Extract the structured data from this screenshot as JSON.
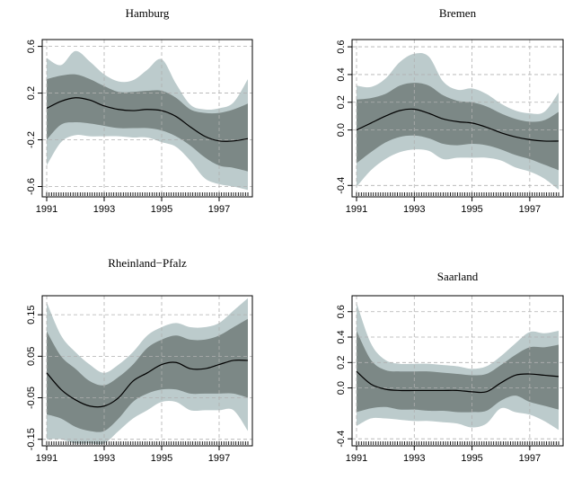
{
  "colors": {
    "outer_band": "#bccbcc",
    "inner_band": "#7c8886",
    "estimate": "#000000",
    "grid": "#b0b0b0"
  },
  "chart_data": [
    {
      "type": "area",
      "title": "Hamburg",
      "xlim": [
        1991,
        1998
      ],
      "ylim": [
        -0.65,
        0.62
      ],
      "yticks": [
        -0.6,
        -0.2,
        0.2,
        0.6
      ],
      "ytick_labels": [
        "-0.6",
        "-0.2",
        "0.2",
        "0.6"
      ],
      "xticks": [
        1991,
        1993,
        1995,
        1997
      ],
      "xtick_labels": [
        "1991",
        "1993",
        "1995",
        "1997"
      ],
      "grid": true,
      "x": [
        1991,
        1991.5,
        1992,
        1992.5,
        1993,
        1993.5,
        1994,
        1994.5,
        1995,
        1995.5,
        1996,
        1996.5,
        1997,
        1997.5,
        1998
      ],
      "series": [
        {
          "role": "outer_upper",
          "values": [
            0.5,
            0.44,
            0.56,
            0.47,
            0.36,
            0.3,
            0.31,
            0.4,
            0.49,
            0.28,
            0.1,
            0.06,
            0.07,
            0.12,
            0.32
          ]
        },
        {
          "role": "inner_upper",
          "values": [
            0.32,
            0.35,
            0.36,
            0.32,
            0.26,
            0.21,
            0.21,
            0.22,
            0.22,
            0.16,
            0.06,
            0.03,
            0.03,
            0.06,
            0.11
          ]
        },
        {
          "role": "estimate",
          "values": [
            0.07,
            0.13,
            0.16,
            0.14,
            0.09,
            0.06,
            0.05,
            0.06,
            0.05,
            0.0,
            -0.09,
            -0.17,
            -0.21,
            -0.21,
            -0.19
          ]
        },
        {
          "role": "inner_lower",
          "values": [
            -0.2,
            -0.07,
            -0.05,
            -0.06,
            -0.08,
            -0.1,
            -0.1,
            -0.1,
            -0.12,
            -0.17,
            -0.25,
            -0.35,
            -0.42,
            -0.44,
            -0.47
          ]
        },
        {
          "role": "outer_lower",
          "values": [
            -0.42,
            -0.22,
            -0.16,
            -0.17,
            -0.17,
            -0.17,
            -0.18,
            -0.18,
            -0.22,
            -0.26,
            -0.38,
            -0.53,
            -0.58,
            -0.6,
            -0.63
          ]
        }
      ]
    },
    {
      "type": "area",
      "title": "Bremen",
      "xlim": [
        1991,
        1998
      ],
      "ylim": [
        -0.45,
        0.62
      ],
      "yticks": [
        -0.4,
        0.0,
        0.2,
        0.4,
        0.6
      ],
      "ytick_labels": [
        "-0.4",
        "0.0",
        "0.2",
        "0.4",
        "0.6"
      ],
      "xticks": [
        1991,
        1993,
        1995,
        1997
      ],
      "xtick_labels": [
        "1991",
        "1993",
        "1995",
        "1997"
      ],
      "grid": true,
      "x": [
        1991,
        1991.5,
        1992,
        1992.5,
        1993,
        1993.5,
        1994,
        1994.5,
        1995,
        1995.5,
        1996,
        1996.5,
        1997,
        1997.5,
        1998
      ],
      "series": [
        {
          "role": "outer_upper",
          "values": [
            0.32,
            0.31,
            0.37,
            0.49,
            0.55,
            0.53,
            0.35,
            0.29,
            0.3,
            0.26,
            0.19,
            0.14,
            0.12,
            0.13,
            0.27
          ]
        },
        {
          "role": "inner_upper",
          "values": [
            0.22,
            0.23,
            0.26,
            0.32,
            0.34,
            0.32,
            0.25,
            0.21,
            0.2,
            0.17,
            0.12,
            0.08,
            0.06,
            0.07,
            0.13
          ]
        },
        {
          "role": "estimate",
          "values": [
            0.0,
            0.05,
            0.1,
            0.14,
            0.15,
            0.12,
            0.08,
            0.06,
            0.05,
            0.02,
            -0.02,
            -0.05,
            -0.07,
            -0.08,
            -0.08
          ]
        },
        {
          "role": "inner_lower",
          "values": [
            -0.24,
            -0.16,
            -0.09,
            -0.05,
            -0.04,
            -0.06,
            -0.1,
            -0.11,
            -0.1,
            -0.11,
            -0.14,
            -0.18,
            -0.21,
            -0.25,
            -0.29
          ]
        },
        {
          "role": "outer_lower",
          "values": [
            -0.41,
            -0.29,
            -0.21,
            -0.16,
            -0.14,
            -0.15,
            -0.21,
            -0.2,
            -0.2,
            -0.2,
            -0.22,
            -0.27,
            -0.3,
            -0.35,
            -0.43
          ]
        }
      ]
    },
    {
      "type": "area",
      "title": "Rheinland−Pfalz",
      "xlim": [
        1991,
        1998
      ],
      "ylim": [
        -0.155,
        0.185
      ],
      "yticks": [
        -0.15,
        -0.05,
        0.05,
        0.15
      ],
      "ytick_labels": [
        "-0.15",
        "-0.05",
        "0.05",
        "0.15"
      ],
      "xticks": [
        1991,
        1993,
        1995,
        1997
      ],
      "xtick_labels": [
        "1991",
        "1993",
        "1995",
        "1997"
      ],
      "grid": true,
      "x": [
        1991,
        1991.5,
        1992,
        1992.5,
        1993,
        1993.5,
        1994,
        1994.5,
        1995,
        1995.5,
        1996,
        1996.5,
        1997,
        1997.5,
        1998
      ],
      "series": [
        {
          "role": "outer_upper",
          "values": [
            0.18,
            0.1,
            0.06,
            0.03,
            0.01,
            0.03,
            0.06,
            0.1,
            0.12,
            0.13,
            0.12,
            0.12,
            0.13,
            0.16,
            0.19
          ]
        },
        {
          "role": "inner_upper",
          "values": [
            0.11,
            0.05,
            0.02,
            -0.01,
            -0.02,
            0.0,
            0.03,
            0.07,
            0.09,
            0.1,
            0.09,
            0.09,
            0.1,
            0.12,
            0.14
          ]
        },
        {
          "role": "estimate",
          "values": [
            0.01,
            -0.03,
            -0.055,
            -0.07,
            -0.07,
            -0.05,
            -0.01,
            0.01,
            0.03,
            0.035,
            0.02,
            0.02,
            0.03,
            0.04,
            0.04
          ]
        },
        {
          "role": "inner_lower",
          "values": [
            -0.09,
            -0.1,
            -0.12,
            -0.13,
            -0.13,
            -0.1,
            -0.06,
            -0.04,
            -0.03,
            -0.03,
            -0.04,
            -0.04,
            -0.04,
            -0.04,
            -0.05
          ]
        },
        {
          "role": "outer_lower",
          "values": [
            -0.15,
            -0.15,
            -0.16,
            -0.16,
            -0.16,
            -0.13,
            -0.1,
            -0.08,
            -0.06,
            -0.06,
            -0.08,
            -0.08,
            -0.08,
            -0.08,
            -0.13
          ]
        }
      ]
    },
    {
      "type": "area",
      "title": "Saarland",
      "xlim": [
        1991,
        1998
      ],
      "ylim": [
        -0.42,
        0.69
      ],
      "yticks": [
        -0.4,
        0.0,
        0.2,
        0.4,
        0.6
      ],
      "ytick_labels": [
        "-0.4",
        "0.0",
        "0.2",
        "0.4",
        "0.6"
      ],
      "xticks": [
        1991,
        1993,
        1995,
        1997
      ],
      "xtick_labels": [
        "1991",
        "1993",
        "1995",
        "1997"
      ],
      "grid": true,
      "x": [
        1991,
        1991.5,
        1992,
        1992.5,
        1993,
        1993.5,
        1994,
        1994.5,
        1995,
        1995.5,
        1996,
        1996.5,
        1997,
        1997.5,
        1998
      ],
      "series": [
        {
          "role": "outer_upper",
          "values": [
            0.67,
            0.35,
            0.22,
            0.19,
            0.19,
            0.19,
            0.18,
            0.17,
            0.15,
            0.17,
            0.25,
            0.35,
            0.44,
            0.43,
            0.45
          ]
        },
        {
          "role": "inner_upper",
          "values": [
            0.45,
            0.22,
            0.14,
            0.13,
            0.13,
            0.13,
            0.12,
            0.11,
            0.1,
            0.11,
            0.18,
            0.26,
            0.32,
            0.32,
            0.34
          ]
        },
        {
          "role": "estimate",
          "values": [
            0.13,
            0.03,
            -0.01,
            -0.02,
            -0.02,
            -0.02,
            -0.02,
            -0.02,
            -0.03,
            -0.03,
            0.04,
            0.1,
            0.11,
            0.1,
            0.09
          ]
        },
        {
          "role": "inner_lower",
          "values": [
            -0.19,
            -0.16,
            -0.15,
            -0.17,
            -0.17,
            -0.18,
            -0.18,
            -0.19,
            -0.19,
            -0.18,
            -0.1,
            -0.06,
            -0.11,
            -0.14,
            -0.17
          ]
        },
        {
          "role": "outer_lower",
          "values": [
            -0.3,
            -0.24,
            -0.24,
            -0.25,
            -0.26,
            -0.26,
            -0.27,
            -0.28,
            -0.31,
            -0.28,
            -0.16,
            -0.19,
            -0.21,
            -0.26,
            -0.33
          ]
        }
      ]
    }
  ]
}
